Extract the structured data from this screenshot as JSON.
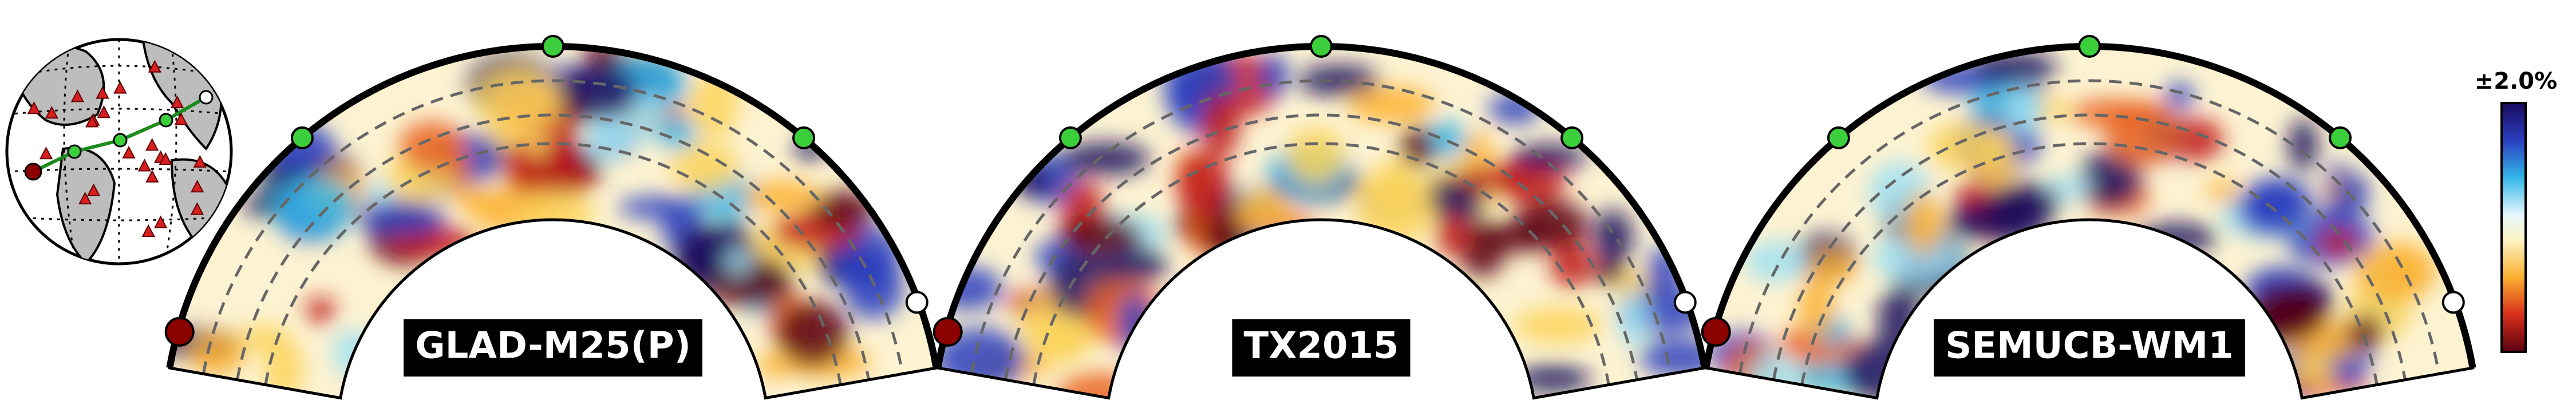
{
  "panels": [
    {
      "label": "GLAD-M25(P)"
    },
    {
      "label": "TX2015"
    },
    {
      "label": "SEMUCB-WM1"
    }
  ],
  "colorbar": {
    "label": "±2.0%"
  }
}
